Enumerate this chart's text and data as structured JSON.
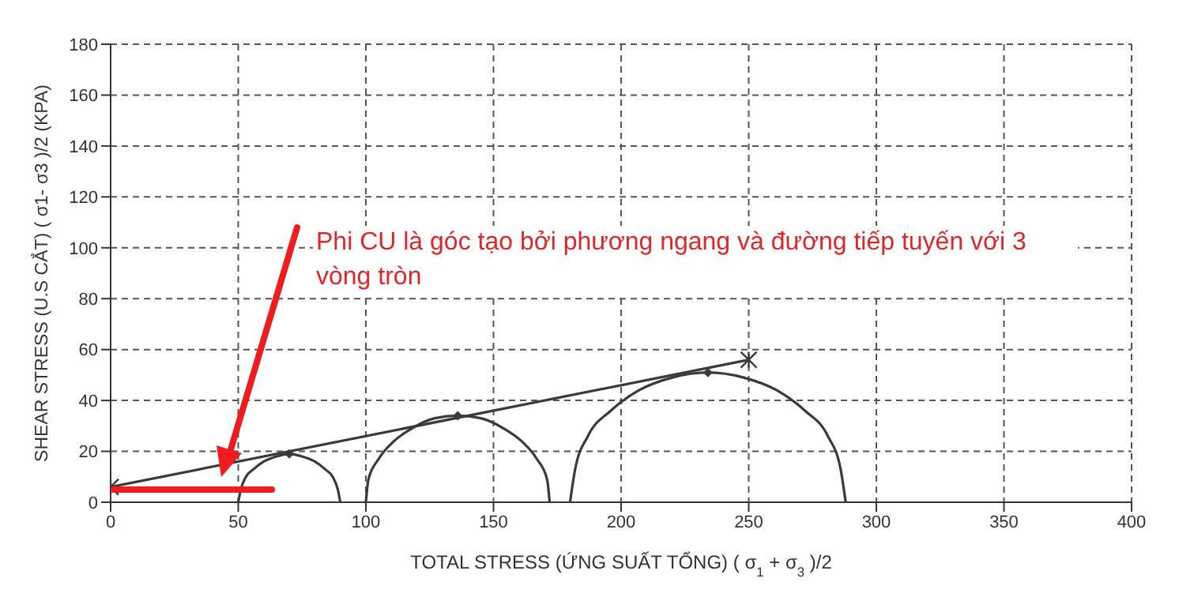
{
  "chart_data": {
    "type": "line",
    "xlabel": "TOTAL STRESS (ỨNG SUẤT TỔNG) ( σ$_{1}$ + σ$_{3}$ )/2",
    "ylabel": "SHEAR STRESS (U.S CẮT) ( σ1- σ3 )/2 (KPA)",
    "xlim": [
      0,
      400
    ],
    "xticks": [
      0,
      50,
      100,
      150,
      200,
      250,
      300,
      350,
      400
    ],
    "ylim": [
      0,
      180
    ],
    "yticks": [
      0,
      20,
      40,
      60,
      80,
      100,
      120,
      140,
      160,
      180
    ],
    "grid": true,
    "marker": "none",
    "line_style": "solid",
    "annotations": [
      "Phi CU là góc tạo bởi phương ngang và đường tiếp tuyến với 3 vòng tròn"
    ],
    "series": [
      {
        "color": "#3a3a3a",
        "x": [
          50,
          51,
          53,
          56,
          60,
          65,
          70,
          75,
          80,
          84,
          87,
          89,
          90
        ],
        "values": [
          0,
          5,
          10,
          13,
          16,
          18,
          19,
          18,
          16,
          13,
          10,
          5,
          0
        ]
      },
      {
        "color": "#3a3a3a",
        "x": [
          100,
          101,
          105,
          111,
          118,
          127,
          136,
          145,
          154,
          161,
          167,
          171,
          172
        ],
        "values": [
          0,
          9,
          17,
          24,
          29,
          33,
          34,
          33,
          29,
          24,
          17,
          9,
          0
        ]
      },
      {
        "color": "#3a3a3a",
        "x": [
          180,
          182,
          187,
          196,
          207,
          220,
          234,
          248,
          261,
          272,
          281,
          286,
          288
        ],
        "values": [
          0,
          13,
          26,
          36,
          44,
          49,
          51,
          49,
          44,
          36,
          26,
          13,
          0
        ]
      },
      {
        "color": "#3a3a3a",
        "marker": "cross",
        "x": [
          0,
          250
        ],
        "values": [
          6,
          56
        ]
      },
      {
        "type": "scatter",
        "color": "#3a3a3a",
        "marker": "diamond",
        "x": [
          70,
          136,
          234
        ],
        "values": [
          19,
          34,
          51
        ]
      }
    ]
  }
}
